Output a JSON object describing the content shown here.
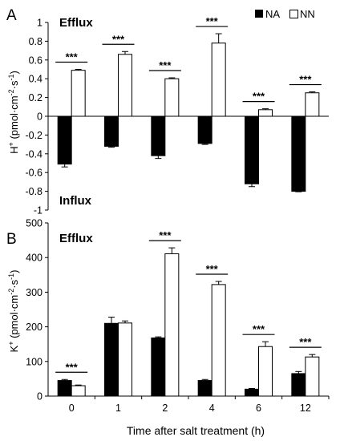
{
  "xlabel": "Time after salt treatment (h)",
  "legend": {
    "na_label": "NA",
    "nn_label": "NN"
  },
  "colors": {
    "na_fill": "#000000",
    "nn_fill": "#ffffff",
    "stroke": "#000000"
  },
  "chart_data": [
    {
      "type": "bar",
      "panel_label": "A",
      "categories": [
        "0",
        "1",
        "2",
        "4",
        "6",
        "12"
      ],
      "series": [
        {
          "name": "NA",
          "values": [
            -0.51,
            -0.32,
            -0.42,
            -0.29,
            -0.72,
            -0.8
          ],
          "errors": [
            0.03,
            0.01,
            0.03,
            0.01,
            0.03,
            0.005
          ]
        },
        {
          "name": "NN",
          "values": [
            0.49,
            0.66,
            0.4,
            0.78,
            0.07,
            0.25
          ],
          "errors": [
            0.01,
            0.03,
            0.01,
            0.1,
            0.01,
            0.01
          ]
        }
      ],
      "ylabel_main": "H",
      "ylabel_sup": "+",
      "ylabel_unit": " (pmol·cm",
      "ylabel_unit_sup": "-2",
      "ylabel_unit2": "·s",
      "ylabel_unit2_sup": "-1",
      "ylabel_end": ")",
      "ylim": [
        -1,
        1
      ],
      "yticks": [
        "1",
        "0.8",
        "0.6",
        "0.4",
        "0.2",
        "0",
        "-0.2",
        "-0.4",
        "-0.6",
        "-0.8",
        "-1"
      ],
      "annotations": {
        "efflux": "Efflux",
        "influx": "Influx"
      },
      "significance": [
        "***",
        "***",
        "***",
        "***",
        "***",
        "***"
      ],
      "grid": false,
      "legend_position": "top-right"
    },
    {
      "type": "bar",
      "panel_label": "B",
      "categories": [
        "0",
        "1",
        "2",
        "4",
        "6",
        "12"
      ],
      "series": [
        {
          "name": "NA",
          "values": [
            45,
            210,
            168,
            45,
            20,
            65
          ],
          "errors": [
            3,
            18,
            3,
            3,
            2,
            6
          ]
        },
        {
          "name": "NN",
          "values": [
            30,
            211,
            411,
            322,
            143,
            113
          ],
          "errors": [
            2,
            6,
            17,
            9,
            14,
            7
          ]
        }
      ],
      "ylabel_main": "K",
      "ylabel_sup": "+",
      "ylabel_unit": " (pmol·cm",
      "ylabel_unit_sup": "-2",
      "ylabel_unit2": "·s",
      "ylabel_unit2_sup": "-1",
      "ylabel_end": ")",
      "ylim": [
        0,
        500
      ],
      "yticks": [
        "500",
        "400",
        "300",
        "200",
        "100",
        "0"
      ],
      "annotations": {
        "efflux": "Efflux"
      },
      "significance": [
        "***",
        "",
        "***",
        "***",
        "***",
        "***"
      ],
      "grid": false
    }
  ]
}
